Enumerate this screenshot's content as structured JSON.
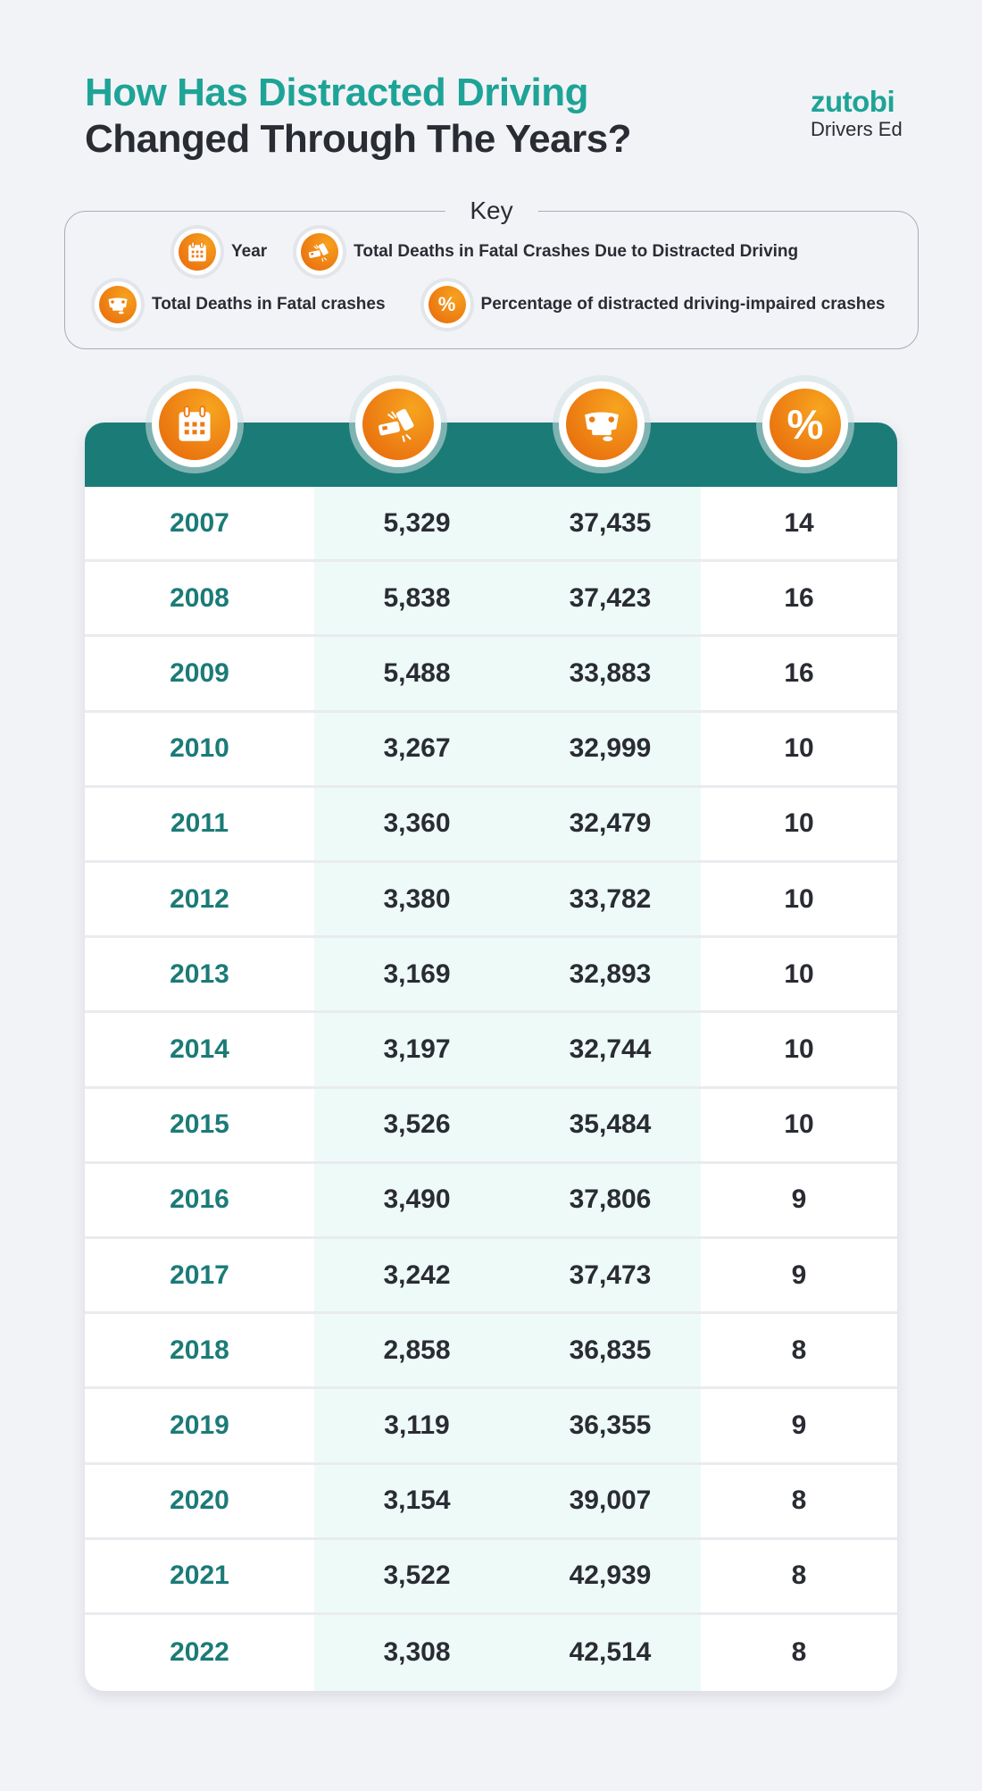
{
  "title": {
    "line1": "How Has Distracted Driving",
    "line2": "Changed Through The Years?"
  },
  "logo": {
    "brand": "zutobi",
    "sub": "Drivers Ed"
  },
  "key": {
    "title": "Key",
    "items": [
      {
        "icon": "calendar-icon",
        "label": "Year"
      },
      {
        "icon": "car-collision-icon",
        "label": "Total Deaths in Fatal Crashes Due to Distracted Driving"
      },
      {
        "icon": "overturned-car-icon",
        "label": "Total Deaths in Fatal crashes"
      },
      {
        "icon": "percent-icon",
        "glyph": "%",
        "label": "Percentage of distracted driving-impaired crashes"
      }
    ]
  },
  "colors": {
    "teal_title": "#1ea497",
    "teal_header": "#1b7b77",
    "orange": "#ee7a12",
    "dark_text": "#2a2c33",
    "background": "#f2f3f7",
    "highlight_column": "#eefaf8"
  },
  "table": {
    "header_icons": [
      "calendar-icon",
      "car-collision-icon",
      "overturned-car-icon",
      "percent-icon"
    ],
    "percent_glyph": "%",
    "rows": [
      {
        "year": "2007",
        "distracted_deaths": "5,329",
        "total_deaths": "37,435",
        "percent": "14"
      },
      {
        "year": "2008",
        "distracted_deaths": "5,838",
        "total_deaths": "37,423",
        "percent": "16"
      },
      {
        "year": "2009",
        "distracted_deaths": "5,488",
        "total_deaths": "33,883",
        "percent": "16"
      },
      {
        "year": "2010",
        "distracted_deaths": "3,267",
        "total_deaths": "32,999",
        "percent": "10"
      },
      {
        "year": "2011",
        "distracted_deaths": "3,360",
        "total_deaths": "32,479",
        "percent": "10"
      },
      {
        "year": "2012",
        "distracted_deaths": "3,380",
        "total_deaths": "33,782",
        "percent": "10"
      },
      {
        "year": "2013",
        "distracted_deaths": "3,169",
        "total_deaths": "32,893",
        "percent": "10"
      },
      {
        "year": "2014",
        "distracted_deaths": "3,197",
        "total_deaths": "32,744",
        "percent": "10"
      },
      {
        "year": "2015",
        "distracted_deaths": "3,526",
        "total_deaths": "35,484",
        "percent": "10"
      },
      {
        "year": "2016",
        "distracted_deaths": "3,490",
        "total_deaths": "37,806",
        "percent": "9"
      },
      {
        "year": "2017",
        "distracted_deaths": "3,242",
        "total_deaths": "37,473",
        "percent": "9"
      },
      {
        "year": "2018",
        "distracted_deaths": "2,858",
        "total_deaths": "36,835",
        "percent": "8"
      },
      {
        "year": "2019",
        "distracted_deaths": "3,119",
        "total_deaths": "36,355",
        "percent": "9"
      },
      {
        "year": "2020",
        "distracted_deaths": "3,154",
        "total_deaths": "39,007",
        "percent": "8"
      },
      {
        "year": "2021",
        "distracted_deaths": "3,522",
        "total_deaths": "42,939",
        "percent": "8"
      },
      {
        "year": "2022",
        "distracted_deaths": "3,308",
        "total_deaths": "42,514",
        "percent": "8"
      }
    ]
  },
  "chart_data": {
    "type": "table",
    "title": "How Has Distracted Driving Changed Through The Years?",
    "columns": [
      "Year",
      "Total Deaths in Fatal Crashes Due to Distracted Driving",
      "Total Deaths in Fatal crashes",
      "Percentage of distracted driving-impaired crashes"
    ],
    "categories": [
      "2007",
      "2008",
      "2009",
      "2010",
      "2011",
      "2012",
      "2013",
      "2014",
      "2015",
      "2016",
      "2017",
      "2018",
      "2019",
      "2020",
      "2021",
      "2022"
    ],
    "series": [
      {
        "name": "Total Deaths in Fatal Crashes Due to Distracted Driving",
        "values": [
          5329,
          5838,
          5488,
          3267,
          3360,
          3380,
          3169,
          3197,
          3526,
          3490,
          3242,
          2858,
          3119,
          3154,
          3522,
          3308
        ]
      },
      {
        "name": "Total Deaths in Fatal crashes",
        "values": [
          37435,
          37423,
          33883,
          32999,
          32479,
          33782,
          32893,
          32744,
          35484,
          37806,
          37473,
          36835,
          36355,
          39007,
          42939,
          42514
        ]
      },
      {
        "name": "Percentage of distracted driving-impaired crashes",
        "values": [
          14,
          16,
          16,
          10,
          10,
          10,
          10,
          10,
          10,
          9,
          9,
          8,
          9,
          8,
          8,
          8
        ]
      }
    ]
  }
}
